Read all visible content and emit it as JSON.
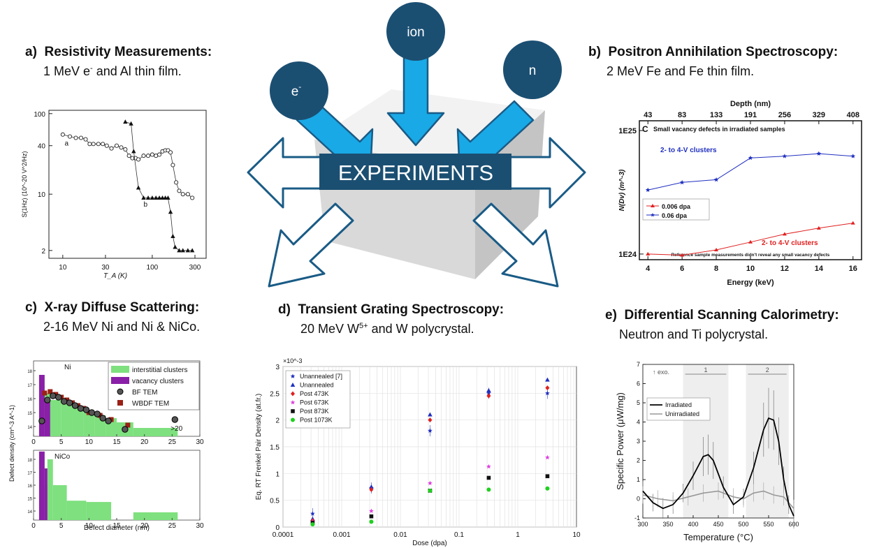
{
  "center": {
    "title": "EXPERIMENTS",
    "particles": [
      "e",
      "ion",
      "n"
    ],
    "electron_sup": "-"
  },
  "sections": {
    "a": {
      "letter": "a)",
      "title": "Resistivity Measurements:",
      "sub_pre": "1 MeV e",
      "sub_sup": "-",
      "sub_post": " and Al thin film."
    },
    "b": {
      "letter": "b)",
      "title": "Positron Annihilation Spectroscopy:",
      "sub": "2 MeV Fe and Fe thin film."
    },
    "c": {
      "letter": "c)",
      "title": "X-ray Diffuse Scattering:",
      "sub": "2-16 MeV Ni and Ni & NiCo."
    },
    "d": {
      "letter": "d)",
      "title": "Transient Grating Spectroscopy:",
      "sub_pre": "20 MeV W",
      "sub_sup": "5+",
      "sub_post": " and W polycrystal."
    },
    "e": {
      "letter": "e)",
      "title": "Differential Scanning Calorimetry:",
      "sub": "Neutron and Ti polycrystal."
    }
  },
  "colors": {
    "arrow_fill": "#19a9e6",
    "arrow_stroke": "#1a5b86",
    "circle": "#1b4f72",
    "title_box": "#1b4f72"
  },
  "chart_data": [
    {
      "id": "a",
      "type": "line",
      "xlabel": "T_A (K)",
      "ylabel": "S(1Hz) (10^-20 V^2/Hz)",
      "xscale": "log",
      "yscale": "log",
      "xlim": [
        7,
        400
      ],
      "ylim": [
        1.6,
        110
      ],
      "xticks": [
        "10",
        "30",
        "100",
        "300"
      ],
      "yticks": [
        "100",
        "40",
        "10",
        "2"
      ],
      "series": [
        {
          "name": "a",
          "x": [
            10,
            12,
            14,
            16,
            18,
            20,
            22,
            25,
            28,
            31,
            35,
            40,
            45,
            50,
            55,
            60,
            65,
            70,
            80,
            90,
            100,
            110,
            120,
            130,
            140,
            150,
            160,
            170,
            185,
            200,
            220,
            250,
            280
          ],
          "y": [
            55,
            52,
            50,
            50,
            48,
            42,
            42,
            42,
            42,
            40,
            37,
            40,
            38,
            36,
            30,
            28,
            28,
            27,
            30,
            30,
            31,
            30,
            31,
            34,
            35,
            35,
            33,
            23,
            14,
            11,
            10,
            10,
            9
          ]
        },
        {
          "name": "b",
          "x": [
            50,
            58,
            62,
            70,
            80,
            90,
            100,
            110,
            120,
            130,
            140,
            150,
            160,
            170,
            180,
            200,
            220,
            250,
            280
          ],
          "y": [
            79,
            75,
            34,
            12,
            9,
            9,
            9,
            9,
            9,
            9,
            9,
            9,
            6,
            3,
            2.2,
            2,
            2,
            2,
            2
          ]
        }
      ]
    },
    {
      "id": "b",
      "type": "line",
      "xlabel": "Energy (keV)",
      "ylabel": "N(Dv) (m^-3)",
      "top_label": "Depth (nm)",
      "panel_letter": "C",
      "panel_title": "Small vacancy defects in irradiated samples",
      "footnote": "Reference sample measurements didn't reveal any small vacancy defects",
      "xlim": [
        3.5,
        16.5
      ],
      "yscale": "log",
      "ylim": [
        9e+23,
        1.2e+25
      ],
      "xticks": [
        4,
        6,
        8,
        10,
        12,
        14,
        16
      ],
      "top_ticks": [
        "43",
        "83",
        "133",
        "191",
        "256",
        "329",
        "408"
      ],
      "yticks": [
        "1E25",
        "1E24"
      ],
      "series": [
        {
          "name": "0.006 dpa",
          "label": "2- to 4-V clusters",
          "x": [
            4,
            6,
            8,
            10,
            12,
            14,
            16
          ],
          "y": [
            1e+24,
            9.8e+23,
            1.08e+24,
            1.25e+24,
            1.45e+24,
            1.62e+24,
            1.78e+24
          ]
        },
        {
          "name": "0.06 dpa",
          "label": "2- to 4-V clusters",
          "x": [
            4,
            6,
            8,
            10,
            12,
            14,
            16
          ],
          "y": [
            3.3e+24,
            3.8e+24,
            4e+24,
            6e+24,
            6.2e+24,
            6.5e+24,
            6.2e+24
          ]
        }
      ]
    },
    {
      "id": "c",
      "type": "bar",
      "xlabel": "Defect diameter (nm)",
      "ylabel": "Defect density (cm^-3 A^-1)",
      "annotation": ">20",
      "legend": [
        "interstitial clusters",
        "vacancy clusters",
        "BF TEM",
        "WBDF TEM"
      ],
      "xlim": [
        0,
        30
      ],
      "xticks": [
        0,
        5,
        10,
        15,
        20,
        25,
        30
      ],
      "yticks": [
        "10^18",
        "10^17",
        "10^16",
        "10^15",
        "10^14"
      ],
      "panels": [
        {
          "name": "Ni",
          "interstitial": [
            [
              1,
              3,
              16.4
            ],
            [
              3,
              5,
              15.9
            ],
            [
              5,
              7,
              15.6
            ],
            [
              7,
              9,
              15.4
            ],
            [
              9,
              11,
              15.0
            ],
            [
              11,
              13,
              14.8
            ],
            [
              13,
              15,
              14.6
            ],
            [
              15,
              18,
              14.3
            ],
            [
              18,
              26,
              13.9
            ]
          ],
          "vacancy": [
            [
              1,
              2,
              17.7
            ],
            [
              2,
              3,
              16.0
            ]
          ],
          "bf_tem": [
            [
              1.5,
              14.4
            ],
            [
              2.5,
              15.9
            ],
            [
              3.5,
              16.2
            ],
            [
              4.5,
              16.1
            ],
            [
              5.5,
              15.8
            ],
            [
              6.5,
              15.7
            ],
            [
              7.5,
              15.5
            ],
            [
              8.5,
              15.3
            ],
            [
              9.5,
              15.2
            ],
            [
              10.5,
              15.0
            ],
            [
              11.5,
              14.9
            ],
            [
              12.5,
              14.6
            ],
            [
              13.5,
              14.4
            ],
            [
              16.5,
              13.8
            ],
            [
              25.5,
              14.5
            ]
          ],
          "wbdf_tem": [
            [
              2,
              16.4
            ],
            [
              3,
              16.5
            ],
            [
              4,
              16.3
            ],
            [
              5,
              16.1
            ],
            [
              6,
              15.9
            ],
            [
              7,
              15.7
            ],
            [
              8,
              15.5
            ],
            [
              9,
              15.3
            ],
            [
              10,
              15.0
            ],
            [
              12,
              14.8
            ],
            [
              14,
              14.5
            ],
            [
              17,
              14.1
            ]
          ]
        },
        {
          "name": "NiCo",
          "interstitial": [
            [
              1,
              2.5,
              16.0
            ],
            [
              2.5,
              3.5,
              18.0
            ],
            [
              3.5,
              6,
              16.0
            ],
            [
              6,
              9.5,
              14.8
            ],
            [
              9.5,
              14,
              14.7
            ],
            [
              18,
              26,
              13.9
            ]
          ],
          "vacancy": [
            [
              1,
              2,
              18.6
            ],
            [
              2,
              2.5,
              17.3
            ]
          ]
        }
      ]
    },
    {
      "id": "d",
      "type": "scatter",
      "xlabel": "Dose (dpa)",
      "ylabel": "Eq. RT Frenkel Pair Density (at.fr.)",
      "multiplier": "×10^-3",
      "xscale": "log",
      "xlim": [
        0.0001,
        10
      ],
      "ylim": [
        0,
        3
      ],
      "xticks": [
        "0.0001",
        "0.001",
        "0.01",
        "0.1",
        "1",
        "10"
      ],
      "yticks": [
        "0",
        "0.5",
        "1",
        "1.5",
        "2",
        "2.5",
        "3"
      ],
      "series": [
        {
          "name": "Unannealed [7]",
          "x": [
            0.00032,
            0.0032,
            0.032,
            0.32,
            3.2
          ],
          "y": [
            0.00025,
            0.00073,
            0.0018,
            0.0025,
            0.0025
          ]
        },
        {
          "name": "Unannealed",
          "x": [
            0.00032,
            0.0032,
            0.032,
            0.32,
            3.2
          ],
          "y": [
            0.00015,
            0.00075,
            0.0021,
            0.00255,
            0.00275
          ]
        },
        {
          "name": "Post 473K",
          "x": [
            0.00032,
            0.0032,
            0.032,
            0.32,
            3.2
          ],
          "y": [
            0.00012,
            0.0007,
            0.002,
            0.00245,
            0.0026
          ]
        },
        {
          "name": "Post 673K",
          "x": [
            0.00032,
            0.0032,
            0.032,
            0.32,
            3.2
          ],
          "y": [
            0.0001,
            0.0003,
            0.00082,
            0.00113,
            0.0013
          ]
        },
        {
          "name": "Post 873K",
          "x": [
            0.00032,
            0.0032,
            0.032,
            0.32,
            3.2
          ],
          "y": [
            8e-05,
            0.0002,
            0.00068,
            0.00092,
            0.00095
          ]
        },
        {
          "name": "Post 1073K",
          "x": [
            0.00032,
            0.0032,
            0.032,
            0.32,
            3.2
          ],
          "y": [
            5e-05,
            0.0001,
            0.00068,
            0.0007,
            0.00072
          ]
        }
      ]
    },
    {
      "id": "e",
      "type": "line",
      "xlabel": "Temperature (°C)",
      "ylabel": "Specific Power (μW/mg)",
      "annotation": "↑ exo.",
      "regions": [
        "1",
        "2"
      ],
      "xlim": [
        300,
        600
      ],
      "ylim": [
        -1,
        7
      ],
      "xticks": [
        300,
        350,
        400,
        450,
        500,
        550,
        600
      ],
      "yticks": [
        -1,
        0,
        1,
        2,
        3,
        4,
        5,
        6,
        7
      ],
      "series": [
        {
          "name": "Irradiated",
          "x": [
            300,
            320,
            340,
            360,
            380,
            400,
            420,
            430,
            440,
            460,
            480,
            500,
            520,
            540,
            550,
            560,
            570,
            580,
            590,
            600
          ],
          "y": [
            0.4,
            -0.2,
            -0.5,
            -0.3,
            0.3,
            1.2,
            2.2,
            2.3,
            2.0,
            0.6,
            -0.3,
            0.1,
            1.6,
            3.6,
            4.2,
            4.1,
            3.0,
            1.0,
            -0.3,
            -0.9
          ]
        },
        {
          "name": "Unirradiated",
          "x": [
            300,
            330,
            360,
            390,
            420,
            450,
            480,
            500,
            520,
            540,
            560,
            580,
            600
          ],
          "y": [
            0.2,
            0.0,
            -0.1,
            0.1,
            0.3,
            0.4,
            0.1,
            0.0,
            0.3,
            0.4,
            0.2,
            0.1,
            -0.5
          ]
        }
      ]
    }
  ]
}
